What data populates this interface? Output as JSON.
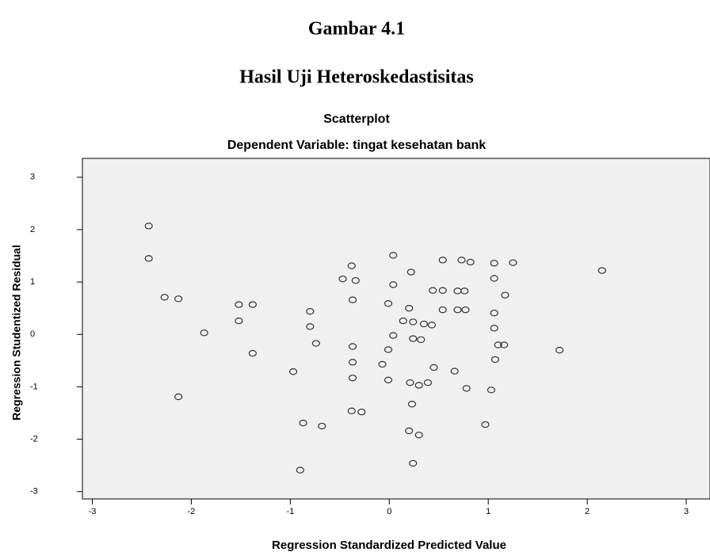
{
  "caption": {
    "figure": "Gambar 4.1",
    "heading": "Hasil Uji Heteroskedastisitas"
  },
  "chart_data": {
    "type": "scatter",
    "title": "Scatterplot",
    "subtitle": "Dependent Variable: tingat kesehatan bank",
    "x_label": "Regression Standardized Predicted Value",
    "y_label": "Regression Studentized Residual",
    "x": [
      -2.43,
      -2.43,
      -2.27,
      -2.13,
      -2.13,
      -1.87,
      -1.52,
      -1.52,
      -1.38,
      -1.38,
      -0.97,
      -0.8,
      -0.8,
      -0.74,
      -0.87,
      -0.68,
      -0.9,
      -0.47,
      -0.34,
      -0.38,
      -0.37,
      -0.37,
      -0.37,
      -0.37,
      -0.38,
      -0.28,
      -0.07,
      -0.01,
      -0.01,
      -0.01,
      0.04,
      0.04,
      0.04,
      0.22,
      0.14,
      0.24,
      0.21,
      0.2,
      0.24,
      0.39,
      0.3,
      0.23,
      0.3,
      0.2,
      0.24,
      0.32,
      0.45,
      0.35,
      0.44,
      0.43,
      0.54,
      0.54,
      0.54,
      0.73,
      0.69,
      0.69,
      0.77,
      0.76,
      0.78,
      0.66,
      0.82,
      1.06,
      1.06,
      1.06,
      1.06,
      1.07,
      1.03,
      1.1,
      1.16,
      1.17,
      1.25,
      0.97,
      1.72,
      2.15
    ],
    "values": [
      2.07,
      1.45,
      0.71,
      0.68,
      -1.19,
      0.03,
      0.57,
      0.26,
      0.57,
      -0.36,
      -0.71,
      0.44,
      0.15,
      -0.17,
      -1.69,
      -1.75,
      -2.59,
      1.06,
      1.03,
      1.31,
      0.66,
      -0.23,
      -0.53,
      -0.83,
      -1.46,
      -1.48,
      -0.57,
      -0.29,
      -0.87,
      0.59,
      1.51,
      0.95,
      -0.02,
      1.19,
      0.26,
      0.24,
      -0.92,
      -1.84,
      -2.46,
      -0.92,
      -0.97,
      -1.33,
      -1.92,
      0.5,
      -0.08,
      -0.1,
      -0.63,
      0.2,
      0.84,
      0.18,
      1.42,
      0.84,
      0.47,
      1.42,
      0.83,
      0.47,
      0.47,
      0.83,
      -1.03,
      -0.7,
      1.38,
      1.36,
      1.07,
      0.41,
      0.12,
      -0.48,
      -1.06,
      -0.2,
      -0.2,
      0.75,
      1.37,
      -1.72,
      -0.3,
      1.22
    ],
    "color": "#333333",
    "background": "#f0f0f0",
    "xlim": [
      -3.1,
      3.24
    ],
    "ylim": [
      -3.14,
      3.36
    ],
    "xticks": [
      -3,
      -2,
      -1,
      0,
      1,
      2,
      3
    ],
    "yticks": [
      -3,
      -2,
      -1,
      0,
      1,
      2,
      3
    ]
  }
}
